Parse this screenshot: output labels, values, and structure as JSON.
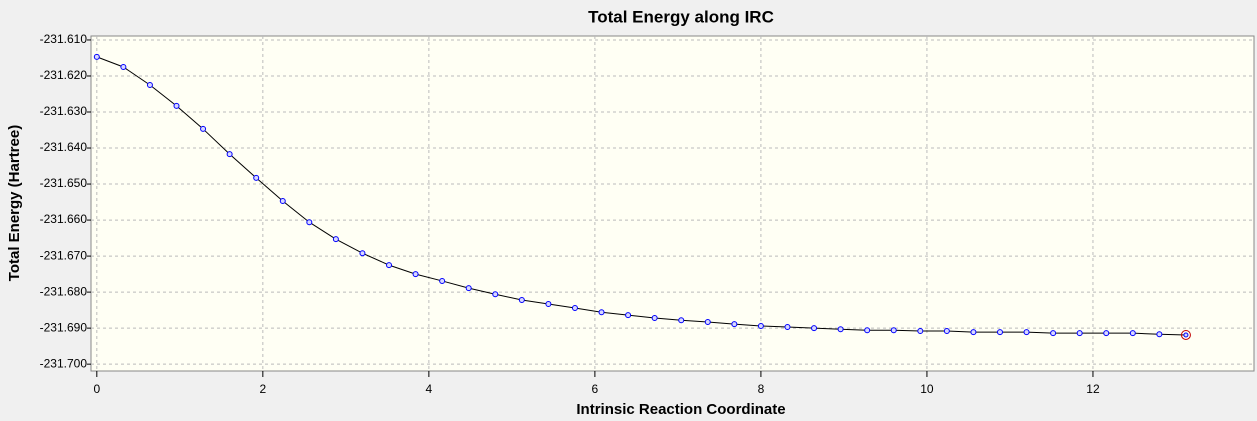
{
  "chart_data": {
    "type": "line",
    "title": "Total Energy along IRC",
    "x_label": "Intrinsic Reaction Coordinate",
    "y_label": "Total Energy (Hartree)",
    "x": [
      0,
      0.32,
      0.64,
      0.96,
      1.28,
      1.6,
      1.92,
      2.24,
      2.56,
      2.88,
      3.2,
      3.52,
      3.84,
      4.16,
      4.48,
      4.8,
      5.12,
      5.44,
      5.76,
      6.08,
      6.4,
      6.72,
      7.04,
      7.36,
      7.68,
      8.0,
      8.32,
      8.64,
      8.96,
      9.28,
      9.6,
      9.92,
      10.24,
      10.56,
      10.88,
      11.2,
      11.52,
      11.84,
      12.16,
      12.48,
      12.8,
      13.12
    ],
    "series": [
      {
        "name": "Total Energy",
        "color": "#0000ff",
        "line_color": "#000000",
        "values": [
          -231.6147,
          -231.6175,
          -231.6225,
          -231.6283,
          -231.6347,
          -231.6417,
          -231.6483,
          -231.6547,
          -231.6606,
          -231.6653,
          -231.6692,
          -231.6725,
          -231.675,
          -231.6769,
          -231.6789,
          -231.6806,
          -231.6822,
          -231.6833,
          -231.6844,
          -231.6856,
          -231.6864,
          -231.6872,
          -231.6878,
          -231.6883,
          -231.6889,
          -231.6894,
          -231.6897,
          -231.69,
          -231.6903,
          -231.6906,
          -231.6906,
          -231.6908,
          -231.6908,
          -231.6911,
          -231.6911,
          -231.6911,
          -231.6914,
          -231.6914,
          -231.6914,
          -231.6914,
          -231.6917,
          -231.6919
        ]
      }
    ],
    "xlim": [
      -0.07,
      13.94
    ],
    "xticks": [
      0,
      2,
      4,
      6,
      8,
      10,
      12
    ],
    "ylim": [
      -231.7019,
      -231.6089
    ],
    "yticks": [
      {
        "value": -231.61,
        "label": "-231.610"
      },
      {
        "value": -231.62,
        "label": "-231.620"
      },
      {
        "value": -231.63,
        "label": "-231.630"
      },
      {
        "value": -231.64,
        "label": "-231.640"
      },
      {
        "value": -231.65,
        "label": "-231.650"
      },
      {
        "value": -231.66,
        "label": "-231.660"
      },
      {
        "value": -231.67,
        "label": "-231.670"
      },
      {
        "value": -231.68,
        "label": "-231.680"
      },
      {
        "value": -231.69,
        "label": "-231.690"
      },
      {
        "value": -231.7,
        "label": "-231.700"
      }
    ],
    "grid": true
  }
}
